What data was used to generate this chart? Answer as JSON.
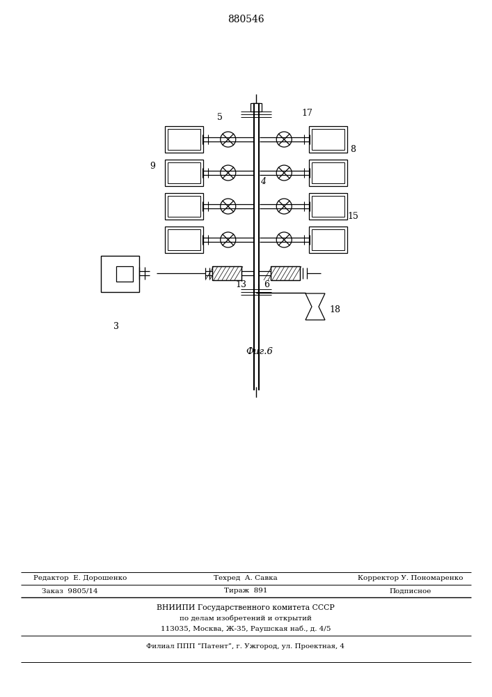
{
  "patent_number": "880546",
  "fig_label": "Фиг.6",
  "background_color": "#ffffff",
  "line_color": "#000000",
  "editor_line1": "Редактор  Е. Дорошенко",
  "editor_line2": "Техред  А. Савка",
  "editor_line3": "Корректор У. Пономаренко",
  "order_left": "Заказ  9805/14",
  "order_mid": "Тираж  891",
  "order_right": "Подписное",
  "vnipi_line1": "ВНИИПИ Государственного комитета СССР",
  "vnipi_line2": "по делам изобретений и открытий",
  "vnipi_line3": "113035, Москва, Ж-35, Раушская наб., д. 4/5",
  "filial_line": "Филиал ППП “Патент”, г. Ужгород, ул. Проектная, 4"
}
